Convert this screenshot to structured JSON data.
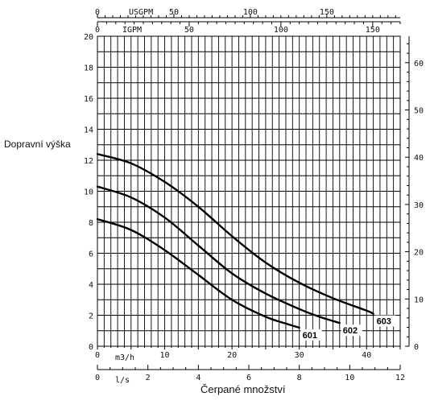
{
  "chart_data": {
    "type": "line",
    "ylabel": "Dopravní výška",
    "xlabel": "Čerpané množství",
    "ylim": [
      0,
      20
    ],
    "yticks": [
      "0",
      "2",
      "4",
      "6",
      "8",
      "10",
      "12",
      "14",
      "16",
      "18",
      "20"
    ],
    "right_axis": {
      "ylim": [
        0,
        65.6
      ],
      "ticks": [
        "0",
        "10",
        "20",
        "30",
        "40",
        "50",
        "60"
      ]
    },
    "x_axes": {
      "m3h": {
        "unit": "m3/h",
        "xlim": [
          0,
          45
        ],
        "ticks": [
          "0",
          "10",
          "20",
          "30",
          "40"
        ]
      },
      "ls": {
        "unit": "l/s",
        "xlim": [
          0,
          12
        ],
        "ticks": [
          "0",
          "2",
          "4",
          "6",
          "8",
          "10",
          "12"
        ]
      },
      "usgpm": {
        "unit": "USGPM",
        "xlim": [
          0,
          198
        ],
        "ticks": [
          "0",
          "50",
          "100",
          "150"
        ]
      },
      "igpm": {
        "unit": "IGPM",
        "xlim": [
          0,
          165
        ],
        "ticks": [
          "0",
          "50",
          "100",
          "150"
        ]
      }
    },
    "series": [
      {
        "name": "601",
        "x": [
          0,
          5,
          10,
          15,
          20,
          25,
          28.5,
          30
        ],
        "y": [
          8.2,
          7.5,
          6.2,
          4.6,
          3.0,
          1.9,
          1.4,
          1.2
        ]
      },
      {
        "name": "602",
        "x": [
          0,
          5,
          10,
          15,
          20,
          25,
          30,
          33,
          36
        ],
        "y": [
          10.3,
          9.6,
          8.3,
          6.5,
          4.7,
          3.4,
          2.4,
          1.9,
          1.5
        ]
      },
      {
        "name": "603",
        "x": [
          0,
          5,
          10,
          15,
          20,
          25,
          30,
          35,
          40,
          41
        ],
        "y": [
          12.4,
          11.8,
          10.6,
          9.0,
          7.1,
          5.4,
          4.1,
          3.1,
          2.3,
          2.1
        ]
      }
    ],
    "grid": true
  }
}
